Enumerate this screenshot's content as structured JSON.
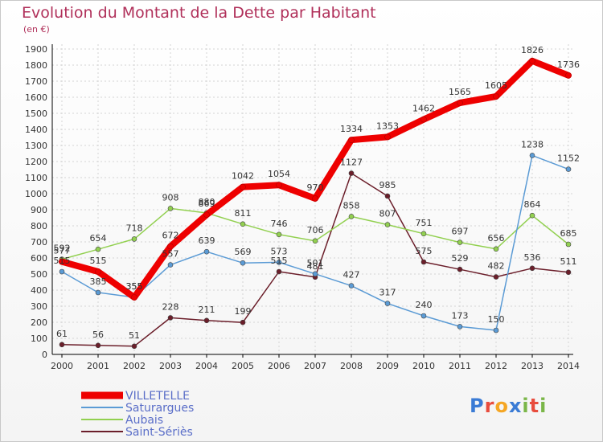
{
  "chart_data": {
    "type": "line",
    "title": "Evolution du Montant de la Dette par Habitant",
    "subtitle": "(en €)",
    "x": [
      2000,
      2001,
      2002,
      2003,
      2004,
      2005,
      2006,
      2007,
      2008,
      2009,
      2010,
      2011,
      2012,
      2013,
      2014
    ],
    "ylim": [
      0,
      1900
    ],
    "yticks": [
      0,
      100,
      200,
      300,
      400,
      500,
      600,
      700,
      800,
      900,
      1000,
      1100,
      1200,
      1300,
      1400,
      1500,
      1600,
      1700,
      1800,
      1900
    ],
    "grid": true,
    "legend_position": "bottom-left",
    "series": [
      {
        "name": "VILLETELLE",
        "color": "#ee0000",
        "values": [
          577,
          515,
          355,
          672,
          869,
          1042,
          1054,
          970,
          1334,
          1353,
          1462,
          1565,
          1605,
          1826,
          1736
        ]
      },
      {
        "name": "Saturargues",
        "color": "#5b9bd5",
        "values": [
          515,
          385,
          355,
          557,
          639,
          569,
          573,
          501,
          427,
          317,
          240,
          173,
          150,
          1238,
          1152
        ]
      },
      {
        "name": "Aubais",
        "color": "#92d050",
        "values": [
          592,
          654,
          718,
          908,
          880,
          811,
          746,
          706,
          858,
          807,
          751,
          697,
          656,
          864,
          685
        ]
      },
      {
        "name": "Saint-Sériès",
        "color": "#6b1e2a",
        "values": [
          61,
          56,
          51,
          228,
          211,
          199,
          515,
          481,
          1127,
          985,
          575,
          529,
          482,
          536,
          511
        ]
      }
    ]
  },
  "logo": {
    "letters": [
      "P",
      "r",
      "o",
      "x",
      "i",
      "t",
      "i"
    ],
    "colors": [
      "#3a7bd5",
      "#e84c3d",
      "#f5a623",
      "#3a7bd5",
      "#7ab648",
      "#e84c3d",
      "#7ab648"
    ]
  }
}
